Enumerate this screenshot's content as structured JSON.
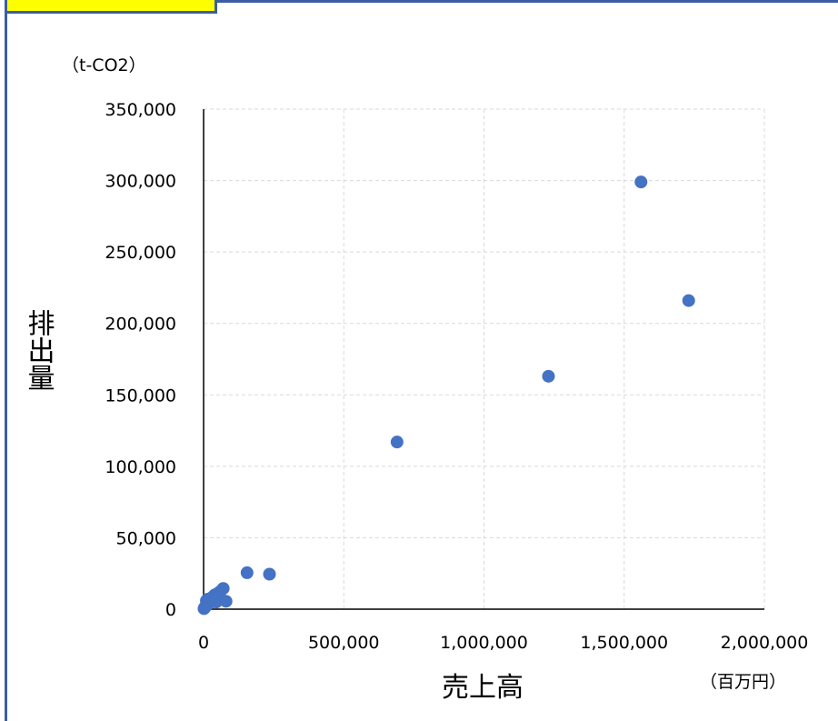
{
  "chart_data": {
    "type": "scatter",
    "title": "",
    "xlabel": "売上高",
    "ylabel": "排出量",
    "x_unit": "（百万円）",
    "y_unit": "（t-CO2）",
    "xlim": [
      0,
      2000000
    ],
    "ylim": [
      0,
      350000
    ],
    "x_ticks": [
      "0",
      "500,000",
      "1,000,000",
      "1,500,000",
      "2,000,000"
    ],
    "y_ticks": [
      "0",
      "50,000",
      "100,000",
      "150,000",
      "200,000",
      "250,000",
      "300,000",
      "350,000"
    ],
    "grid": true,
    "legend": "none",
    "color": "#4472c4",
    "points": [
      {
        "x": 1560000,
        "y": 299000
      },
      {
        "x": 1730000,
        "y": 216000
      },
      {
        "x": 1230000,
        "y": 163000
      },
      {
        "x": 690000,
        "y": 117000
      },
      {
        "x": 155000,
        "y": 25500
      },
      {
        "x": 235000,
        "y": 24500
      },
      {
        "x": 70000,
        "y": 14500
      },
      {
        "x": 60000,
        "y": 12500
      },
      {
        "x": 50000,
        "y": 11000
      },
      {
        "x": 40000,
        "y": 10000
      },
      {
        "x": 35000,
        "y": 9000
      },
      {
        "x": 30000,
        "y": 8000
      },
      {
        "x": 25000,
        "y": 7500
      },
      {
        "x": 15000,
        "y": 7000
      },
      {
        "x": 10000,
        "y": 6000
      },
      {
        "x": 80000,
        "y": 5500
      },
      {
        "x": 45000,
        "y": 5000
      },
      {
        "x": 20000,
        "y": 4000
      },
      {
        "x": 12000,
        "y": 3000
      },
      {
        "x": 8000,
        "y": 2000
      },
      {
        "x": 5000,
        "y": 1500
      },
      {
        "x": 3000,
        "y": 800
      },
      {
        "x": 1500,
        "y": 400
      }
    ]
  }
}
